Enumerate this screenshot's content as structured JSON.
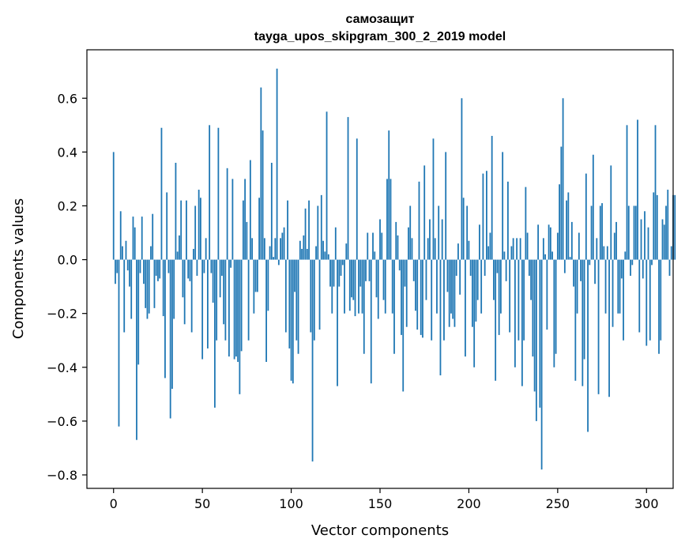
{
  "chart_data": {
    "type": "bar",
    "title_line1": "самозащит",
    "title_line2": "tayga_upos_skipgram_300_2_2019 model",
    "xlabel": "Vector components",
    "ylabel": "Components values",
    "xlim": [
      -15,
      315
    ],
    "ylim": [
      -0.85,
      0.78
    ],
    "x_ticks": [
      0,
      50,
      100,
      150,
      200,
      250,
      300
    ],
    "y_ticks": [
      -0.8,
      -0.6,
      -0.4,
      -0.2,
      0.0,
      0.2,
      0.4,
      0.6
    ],
    "y_tick_labels": [
      "−0.8",
      "−0.6",
      "−0.4",
      "−0.2",
      "0.0",
      "0.2",
      "0.4",
      "0.6"
    ],
    "bar_color": "#1f77b4",
    "grid": false,
    "legend": "none",
    "values": [
      0.4,
      -0.09,
      -0.05,
      -0.62,
      0.18,
      0.05,
      -0.27,
      0.07,
      -0.04,
      -0.1,
      -0.22,
      0.16,
      0.12,
      -0.67,
      -0.39,
      -0.05,
      0.16,
      -0.09,
      -0.18,
      -0.22,
      -0.2,
      0.05,
      0.17,
      -0.18,
      -0.06,
      -0.08,
      -0.07,
      0.49,
      -0.21,
      -0.44,
      0.25,
      -0.05,
      -0.59,
      -0.48,
      -0.22,
      0.36,
      0.03,
      0.09,
      0.22,
      -0.14,
      -0.24,
      0.22,
      -0.07,
      -0.08,
      -0.27,
      0.04,
      0.2,
      -0.06,
      0.26,
      0.23,
      -0.37,
      -0.05,
      0.08,
      -0.33,
      0.5,
      -0.05,
      -0.16,
      -0.55,
      -0.3,
      0.49,
      -0.14,
      -0.06,
      -0.24,
      -0.3,
      0.34,
      -0.36,
      -0.03,
      0.3,
      -0.37,
      -0.36,
      -0.38,
      -0.5,
      -0.34,
      0.22,
      0.3,
      0.14,
      -0.3,
      0.37,
      0.08,
      -0.2,
      -0.12,
      -0.12,
      0.23,
      0.64,
      0.48,
      0.08,
      -0.38,
      -0.19,
      0.05,
      0.36,
      0.01,
      0.08,
      0.71,
      -0.02,
      0.08,
      0.1,
      0.12,
      -0.27,
      0.22,
      -0.33,
      -0.45,
      -0.46,
      -0.12,
      -0.3,
      -0.35,
      0.07,
      0.04,
      0.09,
      0.19,
      0.04,
      0.22,
      -0.27,
      -0.75,
      -0.3,
      0.05,
      0.2,
      -0.26,
      0.24,
      0.07,
      0.03,
      0.55,
      0.02,
      -0.1,
      -0.2,
      -0.1,
      0.12,
      -0.47,
      -0.1,
      -0.06,
      -0.02,
      -0.2,
      0.06,
      0.53,
      -0.19,
      -0.14,
      -0.15,
      -0.21,
      0.45,
      -0.2,
      -0.1,
      -0.2,
      -0.35,
      -0.08,
      0.1,
      -0.08,
      -0.46,
      0.1,
      0.03,
      -0.14,
      -0.22,
      0.15,
      0.1,
      -0.15,
      -0.2,
      0.3,
      0.48,
      0.3,
      -0.2,
      -0.35,
      0.14,
      0.09,
      -0.04,
      -0.28,
      -0.49,
      -0.1,
      -0.25,
      0.12,
      0.2,
      0.08,
      -0.08,
      -0.19,
      -0.26,
      0.29,
      -0.28,
      -0.29,
      0.35,
      -0.15,
      0.08,
      0.15,
      -0.3,
      0.45,
      0.08,
      -0.2,
      0.2,
      -0.43,
      0.15,
      -0.3,
      0.4,
      -0.12,
      -0.25,
      -0.2,
      -0.22,
      -0.25,
      -0.06,
      0.06,
      -0.13,
      0.6,
      0.23,
      -0.36,
      0.2,
      0.07,
      -0.06,
      -0.25,
      -0.4,
      -0.23,
      -0.15,
      0.13,
      -0.2,
      0.32,
      -0.06,
      0.33,
      0.05,
      0.1,
      0.46,
      -0.15,
      -0.45,
      -0.05,
      -0.28,
      -0.2,
      0.4,
      0.03,
      -0.08,
      0.29,
      -0.27,
      0.05,
      0.08,
      -0.4,
      0.08,
      -0.3,
      0.08,
      -0.47,
      -0.3,
      0.27,
      0.1,
      -0.06,
      -0.15,
      -0.36,
      -0.49,
      -0.6,
      0.13,
      -0.55,
      -0.78,
      0.08,
      0.02,
      -0.26,
      0.13,
      0.12,
      0.03,
      -0.4,
      -0.35,
      0.1,
      0.28,
      0.42,
      0.6,
      -0.05,
      0.22,
      0.25,
      0.01,
      0.14,
      -0.1,
      -0.45,
      -0.2,
      0.1,
      -0.08,
      -0.47,
      -0.37,
      0.32,
      -0.64,
      -0.02,
      0.2,
      0.39,
      -0.09,
      0.08,
      -0.5,
      0.2,
      0.21,
      0.05,
      -0.2,
      0.05,
      -0.51,
      0.35,
      -0.25,
      0.1,
      0.14,
      -0.2,
      -0.2,
      -0.07,
      -0.3,
      0.03,
      0.5,
      0.2,
      -0.06,
      -0.02,
      0.2,
      0.2,
      0.52,
      -0.27,
      0.15,
      -0.07,
      0.18,
      -0.32,
      0.12,
      -0.3,
      -0.02,
      0.25,
      0.5,
      0.24,
      -0.35,
      -0.3,
      0.15,
      0.13,
      0.2,
      0.26,
      -0.06,
      0.05,
      0.24,
      0.24
    ]
  }
}
